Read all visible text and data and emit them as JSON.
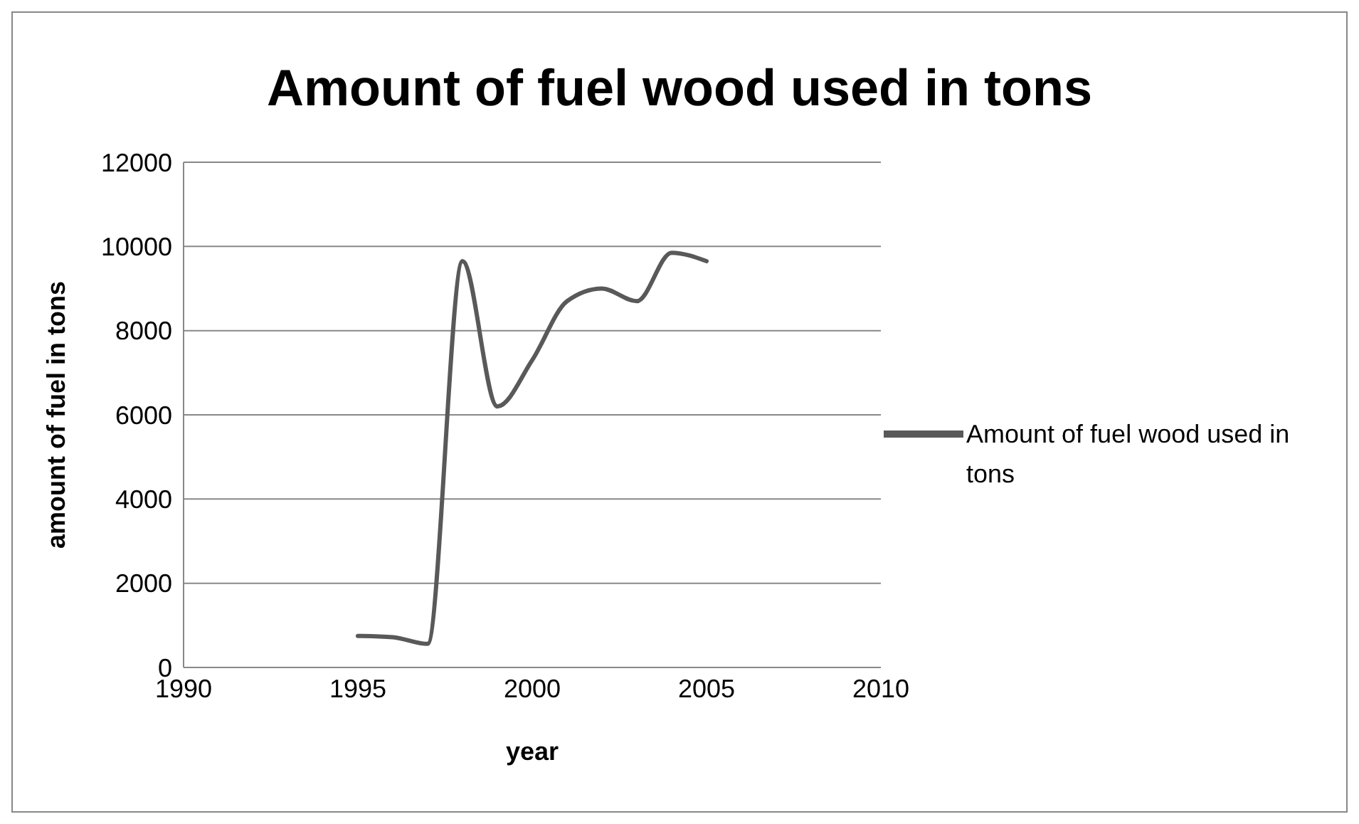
{
  "chart_data": {
    "type": "line",
    "title": "Amount of fuel wood used in tons",
    "xlabel": "year",
    "ylabel": "amount of fuel in tons",
    "x": [
      1995,
      1996,
      1997,
      1998,
      1999,
      2000,
      2001,
      2002,
      2003,
      2004,
      2005
    ],
    "series": [
      {
        "name": "Amount of fuel wood used in tons",
        "color": "#595959",
        "values": [
          750,
          720,
          560,
          9650,
          6200,
          7300,
          8700,
          9000,
          8700,
          9850,
          9650
        ]
      }
    ],
    "xlim": [
      1990,
      2010
    ],
    "xticks": [
      1990,
      1995,
      2000,
      2005,
      2010
    ],
    "ylim": [
      0,
      12000
    ],
    "yticks": [
      0,
      2000,
      4000,
      6000,
      8000,
      10000,
      12000
    ],
    "grid": "y",
    "legend": "right",
    "marker": "none",
    "line_style": "solid"
  }
}
